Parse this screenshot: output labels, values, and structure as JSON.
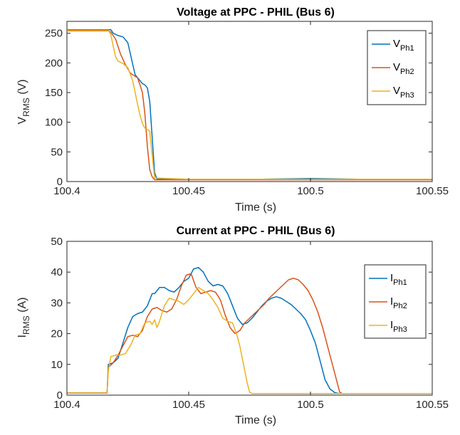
{
  "colors": {
    "ph1": "#0072BD",
    "ph2": "#D95319",
    "ph3": "#EDB120"
  },
  "chart_data": [
    {
      "type": "line",
      "title": "Voltage at PPC - PHIL (Bus 6)",
      "xlabel": "Time (s)",
      "ylabel_main": "V",
      "ylabel_sub": "RMS",
      "ylabel_unit": " (V)",
      "xlim": [
        100.4,
        100.55
      ],
      "ylim": [
        0,
        270
      ],
      "xticks": [
        100.4,
        100.45,
        100.5,
        100.55
      ],
      "xtick_labels": [
        "100.4",
        "100.45",
        "100.5",
        "100.55"
      ],
      "yticks": [
        0,
        50,
        100,
        150,
        200,
        250
      ],
      "ytick_labels": [
        "0",
        "50",
        "100",
        "150",
        "200",
        "250"
      ],
      "grid": false,
      "legend_position": "top-right",
      "series": [
        {
          "name_main": "V",
          "name_sub": "Ph1",
          "color": "#0072BD",
          "x": [
            100.4,
            100.418,
            100.419,
            100.421,
            100.423,
            100.425,
            100.427,
            100.428,
            100.43,
            100.431,
            100.432,
            100.433,
            100.434,
            100.435,
            100.436,
            100.437,
            100.45,
            100.48,
            100.49,
            100.5,
            100.51,
            100.52,
            100.55
          ],
          "y": [
            256,
            256,
            250,
            246,
            244,
            234,
            198,
            180,
            170,
            165,
            163,
            158,
            135,
            75,
            15,
            4,
            4,
            4,
            4.5,
            5,
            4.5,
            4,
            4
          ]
        },
        {
          "name_main": "V",
          "name_sub": "Ph2",
          "color": "#D95319",
          "x": [
            100.4,
            100.417,
            100.418,
            100.42,
            100.422,
            100.424,
            100.426,
            100.427,
            100.429,
            100.43,
            100.431,
            100.432,
            100.433,
            100.434,
            100.435,
            100.436,
            100.45,
            100.5,
            100.55
          ],
          "y": [
            254,
            254,
            252,
            240,
            215,
            197,
            183,
            180,
            175,
            163,
            150,
            115,
            60,
            20,
            8,
            3,
            3,
            3,
            3
          ]
        },
        {
          "name_main": "V",
          "name_sub": "Ph3",
          "color": "#EDB120",
          "x": [
            100.4,
            100.417,
            100.418,
            100.419,
            100.42,
            100.421,
            100.423,
            100.425,
            100.427,
            100.428,
            100.429,
            100.43,
            100.431,
            100.432,
            100.433,
            100.434,
            100.435,
            100.436,
            100.45,
            100.5,
            100.55
          ],
          "y": [
            255,
            255,
            248,
            228,
            210,
            203,
            199,
            192,
            170,
            150,
            130,
            112,
            98,
            90,
            88,
            85,
            45,
            6,
            4,
            4,
            4
          ]
        }
      ]
    },
    {
      "type": "line",
      "title": "Current at PPC - PHIL (Bus 6)",
      "xlabel": "Time (s)",
      "ylabel_main": "I",
      "ylabel_sub": "RMS",
      "ylabel_unit": " (A)",
      "xlim": [
        100.4,
        100.55
      ],
      "ylim": [
        0,
        50
      ],
      "xticks": [
        100.4,
        100.45,
        100.5,
        100.55
      ],
      "xtick_labels": [
        "100.4",
        "100.45",
        "100.5",
        "100.55"
      ],
      "yticks": [
        0,
        10,
        20,
        30,
        40,
        50
      ],
      "ytick_labels": [
        "0",
        "10",
        "20",
        "30",
        "40",
        "50"
      ],
      "grid": false,
      "legend_position": "top-right",
      "series": [
        {
          "name_main": "I",
          "name_sub": "Ph1",
          "color": "#0072BD",
          "x": [
            100.4,
            100.4165,
            100.417,
            100.419,
            100.421,
            100.423,
            100.425,
            100.427,
            100.429,
            100.431,
            100.433,
            100.435,
            100.436,
            100.437,
            100.438,
            100.44,
            100.442,
            100.444,
            100.446,
            100.448,
            100.45,
            100.452,
            100.454,
            100.456,
            100.458,
            100.46,
            100.462,
            100.464,
            100.466,
            100.468,
            100.47,
            100.472,
            100.474,
            100.476,
            100.478,
            100.48,
            100.482,
            100.484,
            100.486,
            100.488,
            100.49,
            100.492,
            100.494,
            100.496,
            100.498,
            100.5,
            100.502,
            100.504,
            100.506,
            100.508,
            100.51,
            100.512,
            100.514,
            100.55
          ],
          "y": [
            0.7,
            0.7,
            10,
            10.5,
            12,
            17,
            22,
            25.5,
            26.5,
            27,
            29,
            33,
            33,
            34,
            35,
            35,
            34,
            33.5,
            35,
            37,
            38,
            41,
            41.5,
            40,
            37,
            35.5,
            36,
            35.5,
            33,
            29,
            25,
            23,
            23.5,
            25,
            27,
            29,
            30.5,
            31.5,
            32,
            31.5,
            30.5,
            29.5,
            28,
            26.5,
            24.5,
            21,
            17,
            11,
            5,
            2,
            0.8,
            0.5,
            0.5,
            0.5
          ]
        },
        {
          "name_main": "I",
          "name_sub": "Ph2",
          "color": "#D95319",
          "x": [
            100.4,
            100.4165,
            100.417,
            100.419,
            100.421,
            100.423,
            100.425,
            100.427,
            100.429,
            100.431,
            100.433,
            100.435,
            100.437,
            100.439,
            100.441,
            100.443,
            100.445,
            100.447,
            100.449,
            100.451,
            100.453,
            100.455,
            100.457,
            100.459,
            100.461,
            100.463,
            100.465,
            100.467,
            100.469,
            100.471,
            100.473,
            100.475,
            100.477,
            100.479,
            100.481,
            100.483,
            100.485,
            100.487,
            100.489,
            100.491,
            100.493,
            100.495,
            100.497,
            100.499,
            100.501,
            100.503,
            100.505,
            100.507,
            100.509,
            100.511,
            100.512,
            100.513,
            100.514,
            100.55
          ],
          "y": [
            0.7,
            0.7,
            9,
            10.5,
            13,
            16,
            19,
            19.5,
            19,
            21,
            25.5,
            28,
            28.5,
            27.5,
            27,
            28,
            31,
            35.5,
            39,
            39.5,
            35,
            33,
            33.5,
            34,
            33.5,
            31,
            26,
            22,
            20,
            21,
            23.5,
            25,
            26.5,
            28,
            29.5,
            31.5,
            33,
            34.5,
            36,
            37.5,
            38,
            37.5,
            36,
            34,
            31,
            27,
            22,
            16,
            10,
            4,
            1,
            0.5,
            0.5,
            0.5
          ]
        },
        {
          "name_main": "I",
          "name_sub": "Ph3",
          "color": "#EDB120",
          "x": [
            100.4,
            100.4165,
            100.417,
            100.418,
            100.42,
            100.422,
            100.424,
            100.426,
            100.428,
            100.43,
            100.432,
            100.434,
            100.435,
            100.436,
            100.437,
            100.438,
            100.44,
            100.442,
            100.444,
            100.446,
            100.448,
            100.45,
            100.452,
            100.454,
            100.456,
            100.458,
            100.46,
            100.462,
            100.464,
            100.466,
            100.468,
            100.47,
            100.471,
            100.472,
            100.473,
            100.474,
            100.475,
            100.476,
            100.477,
            100.55
          ],
          "y": [
            0.7,
            0.7,
            8,
            12.5,
            13,
            13,
            13.5,
            16,
            19.5,
            20,
            23.5,
            24,
            23,
            24.5,
            22,
            24,
            29,
            31.5,
            31,
            30.5,
            29.5,
            31,
            33,
            35,
            34,
            33,
            31,
            28.5,
            25,
            24,
            23.5,
            19,
            16,
            12,
            8,
            4,
            1,
            0.5,
            0.5,
            0.5
          ]
        }
      ]
    }
  ]
}
